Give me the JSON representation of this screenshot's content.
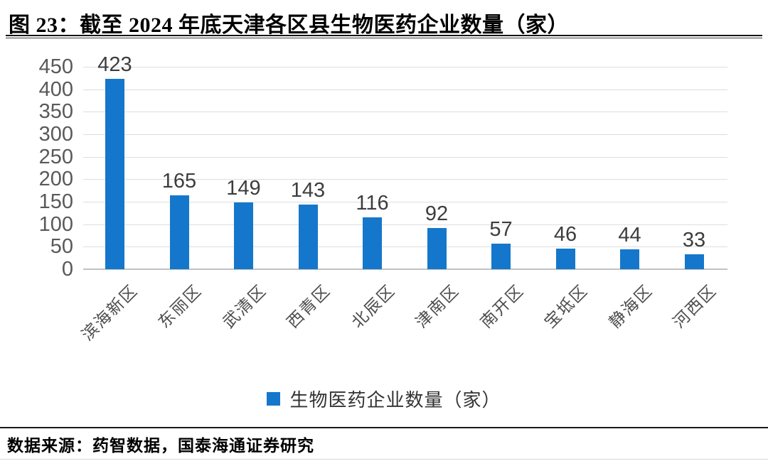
{
  "page": {
    "title": "图 23：截至 2024 年底天津各区县生物医药企业数量（家）",
    "source": "数据来源：药智数据，国泰海通证券研究"
  },
  "legend": {
    "label": "生物医药企业数量（家）"
  },
  "chart_data": {
    "type": "bar",
    "title": "截至 2024 年底天津各区县生物医药企业数量（家）",
    "categories": [
      "滨海新区",
      "东丽区",
      "武清区",
      "西青区",
      "北辰区",
      "津南区",
      "南开区",
      "宝坻区",
      "静海区",
      "河西区"
    ],
    "values": [
      423,
      165,
      149,
      143,
      116,
      92,
      57,
      46,
      44,
      33
    ],
    "series_name": "生物医药企业数量（家）",
    "xlabel": "",
    "ylabel": "",
    "ylim": [
      0,
      450
    ],
    "yticks": [
      0,
      50,
      100,
      150,
      200,
      250,
      300,
      350,
      400,
      450
    ],
    "grid": true,
    "data_labels": true,
    "legend_position": "bottom"
  },
  "colors": {
    "bar": "#1577CB",
    "grid": "#DEDEDE",
    "axis": "#C2C2C2",
    "y_tick_label": "#595959",
    "value_label": "#3D3D3D",
    "category_label": "#4D4D4D"
  }
}
